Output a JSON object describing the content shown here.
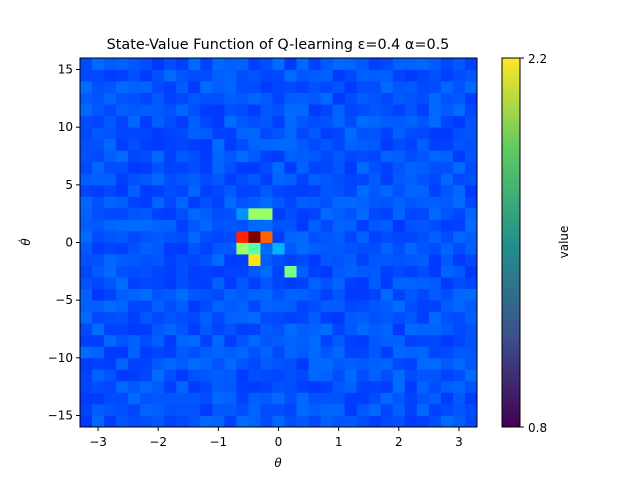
{
  "chart_data": {
    "type": "heatmap",
    "title": "State-Value Function of Q-learning ε=0.4 α=0.5",
    "xlabel": "θ",
    "ylabel": "θ̇",
    "xlim": [
      -3.3,
      3.3
    ],
    "ylim": [
      -16,
      16
    ],
    "xticks": [
      -3,
      -2,
      -1,
      0,
      1,
      2,
      3
    ],
    "xtick_labels": [
      "−3",
      "−2",
      "−1",
      "0",
      "1",
      "2",
      "3"
    ],
    "yticks": [
      -15,
      -10,
      -5,
      0,
      5,
      10,
      15
    ],
    "ytick_labels": [
      "−15",
      "−10",
      "−5",
      "0",
      "5",
      "10",
      "15"
    ],
    "grid": false,
    "colormap": "jet (cells) / viridis (colorbar)",
    "value_range": [
      0.8,
      2.2
    ],
    "colorbar": {
      "label": "value",
      "tick_top": "2.2",
      "tick_bottom": "0.8",
      "colors": [
        "#440154",
        "#3b528b",
        "#21918c",
        "#5ec962",
        "#fde725"
      ]
    },
    "background_value": 0.95,
    "hot_cells": [
      {
        "theta": -0.7,
        "theta_dot": 2.4,
        "value": 1.05
      },
      {
        "theta": -0.5,
        "theta_dot": 2.4,
        "value": 1.45
      },
      {
        "theta": -0.3,
        "theta_dot": 2.4,
        "value": 1.45
      },
      {
        "theta": -0.7,
        "theta_dot": 0.5,
        "value": 1.95
      },
      {
        "theta": -0.5,
        "theta_dot": 0.5,
        "value": 2.2
      },
      {
        "theta": -0.3,
        "theta_dot": 0.5,
        "value": 1.85
      },
      {
        "theta": -0.7,
        "theta_dot": -0.5,
        "value": 1.45
      },
      {
        "theta": -0.5,
        "theta_dot": -0.5,
        "value": 1.35
      },
      {
        "theta": -0.5,
        "theta_dot": -1.5,
        "value": 1.65
      },
      {
        "theta": -0.1,
        "theta_dot": -0.5,
        "value": 1.1
      },
      {
        "theta": 0.1,
        "theta_dot": -2.5,
        "value": 1.4
      }
    ]
  }
}
